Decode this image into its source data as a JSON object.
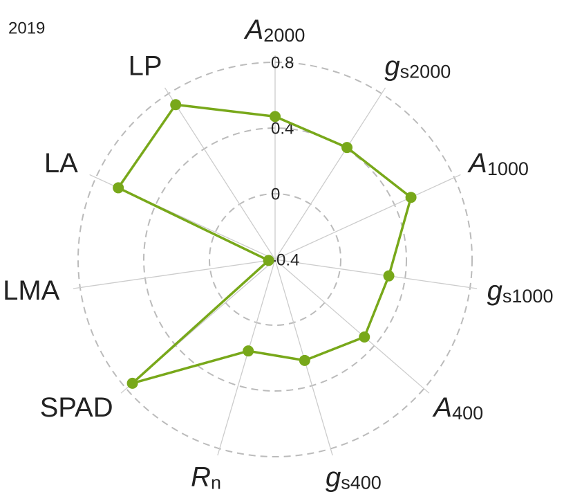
{
  "chart_data": {
    "type": "radar",
    "title": "2019",
    "categories": [
      [
        "A",
        "2000"
      ],
      [
        "g",
        "s2000"
      ],
      [
        "A",
        "1000"
      ],
      [
        "g",
        "s1000"
      ],
      [
        "A",
        "400"
      ],
      [
        "g",
        "s400"
      ],
      [
        "R",
        "n"
      ],
      [
        "SPAD"
      ],
      [
        "LMA"
      ],
      [
        "LA"
      ],
      [
        "LP"
      ]
    ],
    "values": [
      0.47,
      0.41,
      0.51,
      0.3,
      0.32,
      0.24,
      0.18,
      0.75,
      -0.36,
      0.65,
      0.72
    ],
    "color": "#78a81a",
    "ylim": [
      -0.4,
      0.8
    ],
    "yticks": [
      -0.4,
      0,
      0.4,
      0.8
    ],
    "grid": true
  }
}
